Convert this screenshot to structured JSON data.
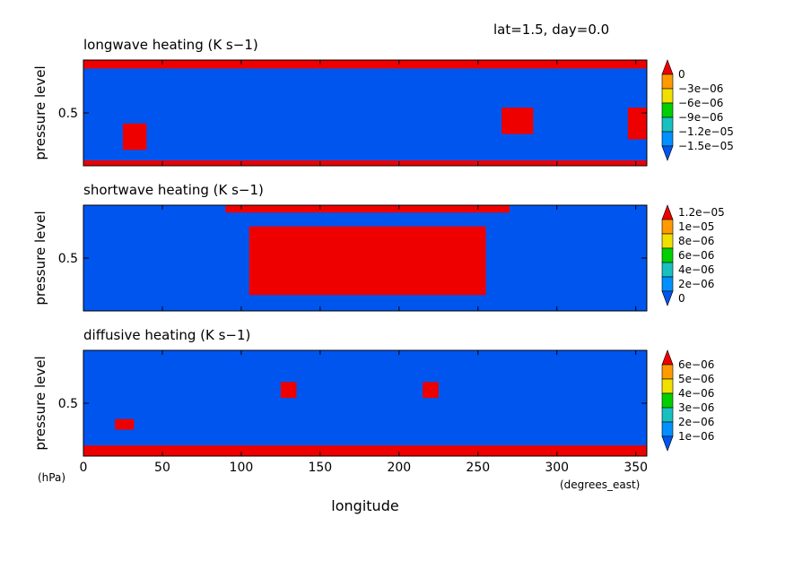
{
  "header": {
    "info": "lat=1.5, day=0.0"
  },
  "axes": {
    "ylabel": "pressure level",
    "yunit": "(hPa)",
    "xlabel": "longitude",
    "xunit": "(degrees_east)"
  },
  "chart_data": [
    {
      "type": "heatmap",
      "title": "longwave heating (K s−1)",
      "xlim": [
        0,
        357
      ],
      "ylim": [
        0,
        1
      ],
      "xticks": [
        0,
        50,
        100,
        150,
        200,
        250,
        300,
        350
      ],
      "yticks": [
        {
          "value": 0.5,
          "label": "0.5"
        }
      ],
      "colorbar": {
        "levels": [
          "0",
          "−3e−06",
          "−6e−06",
          "−9e−06",
          "−1.2e−05",
          "−1.5e−05"
        ],
        "colors": [
          "#ee0000",
          "#ff9a00",
          "#f0e000",
          "#00d000",
          "#18c0c0",
          "#0090ff",
          "#0055ee"
        ]
      },
      "fields": [
        {
          "level": 0,
          "lon": [
            0,
            357
          ],
          "p": [
            0.92,
            1.0
          ]
        },
        {
          "level": 0,
          "lon": [
            0,
            357
          ],
          "p": [
            0.0,
            0.05
          ]
        },
        {
          "level": 0,
          "lon": [
            25,
            40
          ],
          "p": [
            0.15,
            0.4
          ]
        },
        {
          "level": 0,
          "lon": [
            265,
            285
          ],
          "p": [
            0.3,
            0.55
          ]
        },
        {
          "level": 0,
          "lon": [
            345,
            357
          ],
          "p": [
            0.25,
            0.55
          ]
        }
      ]
    },
    {
      "type": "heatmap",
      "title": "shortwave heating (K s−1)",
      "xlim": [
        0,
        357
      ],
      "ylim": [
        0,
        1
      ],
      "xticks": [
        0,
        50,
        100,
        150,
        200,
        250,
        300,
        350
      ],
      "yticks": [
        {
          "value": 0.5,
          "label": "0.5"
        }
      ],
      "colorbar": {
        "levels": [
          "1.2e−05",
          "1e−05",
          "8e−06",
          "6e−06",
          "4e−06",
          "2e−06",
          "0"
        ],
        "colors": [
          "#ee0000",
          "#ff9a00",
          "#f0e000",
          "#00d000",
          "#18c0c0",
          "#0090ff",
          "#0055ee"
        ]
      },
      "fields": [
        {
          "level": 0,
          "lon": [
            90,
            270
          ],
          "p": [
            0.93,
            1.0
          ]
        },
        {
          "level": 0,
          "lon": [
            105,
            255
          ],
          "p": [
            0.15,
            0.8
          ]
        }
      ]
    },
    {
      "type": "heatmap",
      "title": "diffusive heating (K s−1)",
      "xlim": [
        0,
        357
      ],
      "ylim": [
        0,
        1
      ],
      "xticks": [
        0,
        50,
        100,
        150,
        200,
        250,
        300,
        350
      ],
      "yticks": [
        {
          "value": 0.5,
          "label": "0.5"
        }
      ],
      "colorbar": {
        "levels": [
          "6e−06",
          "5e−06",
          "4e−06",
          "3e−06",
          "2e−06",
          "1e−06"
        ],
        "colors": [
          "#ee0000",
          "#ff9a00",
          "#f0e000",
          "#00d000",
          "#18c0c0",
          "#0090ff",
          "#0055ee"
        ]
      },
      "fields": [
        {
          "level": 0,
          "lon": [
            0,
            357
          ],
          "p": [
            0.0,
            0.1
          ]
        },
        {
          "level": 0,
          "lon": [
            125,
            135
          ],
          "p": [
            0.55,
            0.7
          ]
        },
        {
          "level": 0,
          "lon": [
            215,
            225
          ],
          "p": [
            0.55,
            0.7
          ]
        },
        {
          "level": 0,
          "lon": [
            20,
            32
          ],
          "p": [
            0.25,
            0.35
          ]
        }
      ]
    }
  ]
}
